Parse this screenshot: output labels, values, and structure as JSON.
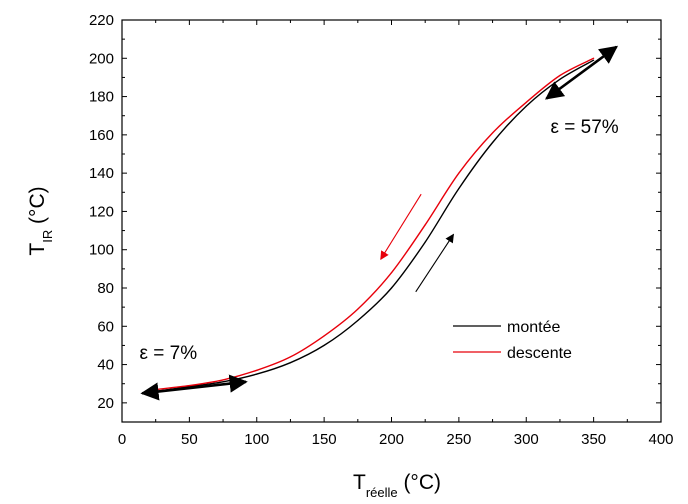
{
  "chart_data": {
    "type": "line",
    "xlabel": "T",
    "xlabel_sub": "réelle",
    "xlabel_unit": " (°C)",
    "ylabel": "T",
    "ylabel_sub": "IR",
    "ylabel_unit": " (°C)",
    "xlim": [
      0,
      400
    ],
    "ylim": [
      10,
      220
    ],
    "xticks": [
      0,
      50,
      100,
      150,
      200,
      250,
      300,
      350,
      400
    ],
    "yticks": [
      20,
      40,
      60,
      80,
      100,
      120,
      140,
      160,
      180,
      200,
      220
    ],
    "grid": false,
    "legend_position": "lower-right",
    "series": [
      {
        "name": "montée",
        "color": "#000000",
        "x": [
          25,
          50,
          75,
          100,
          125,
          150,
          175,
          200,
          225,
          250,
          275,
          300,
          325,
          350
        ],
        "y": [
          26,
          28.5,
          31,
          35,
          41,
          50,
          63,
          80,
          104,
          132,
          156,
          175,
          189,
          199
        ]
      },
      {
        "name": "descente",
        "color": "#e8000b",
        "x": [
          350,
          325,
          300,
          275,
          250,
          225,
          200,
          175,
          150,
          125,
          100,
          75,
          50,
          25
        ],
        "y": [
          200,
          191,
          177,
          161,
          140,
          113,
          88,
          69,
          55,
          44,
          37,
          32,
          29,
          27
        ]
      }
    ],
    "arrows": [
      {
        "from": [
          218,
          78
        ],
        "to": [
          246,
          108
        ],
        "color": "#000000"
      },
      {
        "from": [
          222,
          129
        ],
        "to": [
          192,
          95
        ],
        "color": "#e8000b"
      },
      {
        "from": [
          315,
          179
        ],
        "to": [
          367,
          206
        ],
        "color": "#000000",
        "double": true
      },
      {
        "from": [
          15,
          25
        ],
        "to": [
          92,
          31
        ],
        "color": "#000000",
        "double": true
      }
    ],
    "annotations": [
      {
        "text": "ε = 57%",
        "x": 318,
        "y": 161
      },
      {
        "text": "ε = 7%",
        "x": 13,
        "y": 43
      }
    ]
  }
}
